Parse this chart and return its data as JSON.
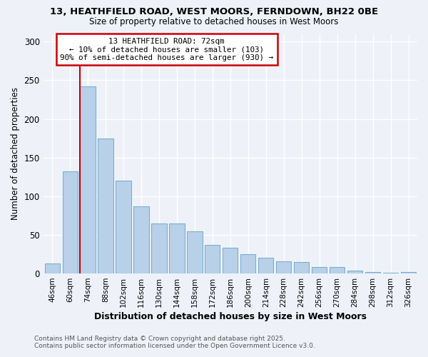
{
  "title_line1": "13, HEATHFIELD ROAD, WEST MOORS, FERNDOWN, BH22 0BE",
  "title_line2": "Size of property relative to detached houses in West Moors",
  "xlabel": "Distribution of detached houses by size in West Moors",
  "ylabel": "Number of detached properties",
  "categories": [
    "46sqm",
    "60sqm",
    "74sqm",
    "88sqm",
    "102sqm",
    "116sqm",
    "130sqm",
    "144sqm",
    "158sqm",
    "172sqm",
    "186sqm",
    "200sqm",
    "214sqm",
    "228sqm",
    "242sqm",
    "256sqm",
    "270sqm",
    "284sqm",
    "298sqm",
    "312sqm",
    "326sqm"
  ],
  "values": [
    13,
    132,
    242,
    175,
    120,
    87,
    65,
    65,
    55,
    37,
    33,
    25,
    20,
    16,
    15,
    8,
    8,
    4,
    2,
    1,
    2
  ],
  "bar_color": "#b8d0e8",
  "bar_edgecolor": "#7aafd4",
  "vline_x_index": 2,
  "vline_color": "#cc0000",
  "annotation_line1": "13 HEATHFIELD ROAD: 72sqm",
  "annotation_line2": "← 10% of detached houses are smaller (103)",
  "annotation_line3": "90% of semi-detached houses are larger (930) →",
  "annotation_box_edgecolor": "#cc0000",
  "footnote_line1": "Contains HM Land Registry data © Crown copyright and database right 2025.",
  "footnote_line2": "Contains public sector information licensed under the Open Government Licence v3.0.",
  "ylim": [
    0,
    310
  ],
  "yticks": [
    0,
    50,
    100,
    150,
    200,
    250,
    300
  ],
  "bg_color": "#eef2f8",
  "grid_color": "#ffffff"
}
